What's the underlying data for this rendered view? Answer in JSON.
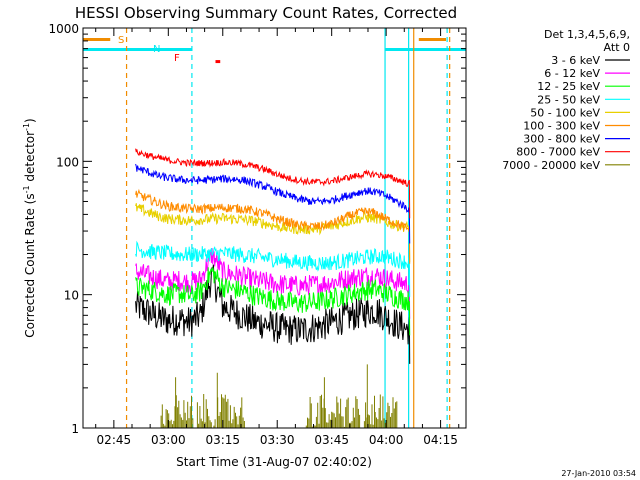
{
  "chart_data": {
    "type": "line",
    "title": "HESSI Observing Summary Count Rates, Corrected",
    "xlabel": "Start Time (31-Aug-07 02:40:02)",
    "ylabel_main": "Corrected Count Rate (s",
    "ylabel_sup1": "-1",
    "ylabel_mid": " detector",
    "ylabel_sup2": "-1",
    "ylabel_end": ")",
    "y_log": true,
    "ylim": [
      1,
      1000
    ],
    "xlim_minutes": [
      -3.5,
      102.0
    ],
    "x_ticks": [
      {
        "label": "02:45",
        "t": 5
      },
      {
        "label": "03:00",
        "t": 20
      },
      {
        "label": "03:15",
        "t": 35
      },
      {
        "label": "03:30",
        "t": 50
      },
      {
        "label": "03:45",
        "t": 65
      },
      {
        "label": "04:00",
        "t": 80
      },
      {
        "label": "04:15",
        "t": 95
      }
    ],
    "y_ticks": [
      {
        "label": "1",
        "v": 1
      },
      {
        "label": "10",
        "v": 10
      },
      {
        "label": "100",
        "v": 100
      },
      {
        "label": "1000",
        "v": 1000
      }
    ],
    "legend_header": "Det 1,3,4,5,6,9,",
    "legend_att": "Att 0",
    "timestamp": "27-Jan-2010 03:54",
    "flag_labels": {
      "saa": "S",
      "night": "N",
      "flare": "F"
    },
    "flag_colors": {
      "saa": "#f08c00",
      "night": "#00e8f0",
      "flare": "#ff0000"
    },
    "vlines": [
      {
        "t": 8.5,
        "color": "#f08c00",
        "dashed": true
      },
      {
        "t": 26.5,
        "color": "#00e8f0",
        "dashed": true
      },
      {
        "t": 79.7,
        "color": "#00e8f0",
        "dashed": false
      },
      {
        "t": 86.2,
        "color": "#00e8f0",
        "dashed": false
      },
      {
        "t": 87.6,
        "color": "#f08c00",
        "dashed": false
      },
      {
        "t": 96.8,
        "color": "#00e8f0",
        "dashed": true
      },
      {
        "t": 97.5,
        "color": "#f08c00",
        "dashed": true
      }
    ],
    "flag_bars": [
      {
        "flag": "saa",
        "t0": -3.5,
        "t1": 4.0,
        "v": 820
      },
      {
        "flag": "night",
        "t0": -3.5,
        "t1": 26.5,
        "v": 690
      },
      {
        "flag": "night",
        "t0": 79.7,
        "t1": 102.0,
        "v": 690
      },
      {
        "flag": "saa",
        "t0": 89.0,
        "t1": 96.5,
        "v": 820
      },
      {
        "flag": "flare",
        "t0": 33.0,
        "t1": 34.3,
        "v": 560
      }
    ],
    "series": [
      {
        "name": "3 - 6 keV",
        "color": "#000000",
        "x": [
          11,
          14,
          17,
          20,
          23,
          26,
          29,
          32,
          35,
          38,
          41,
          44,
          47,
          50,
          53,
          56,
          59,
          62,
          65,
          68,
          71,
          74,
          77,
          80,
          83,
          86
        ],
        "y": [
          8.2,
          7.5,
          6.8,
          6.4,
          6.5,
          6.2,
          7.0,
          13.5,
          8.2,
          7.5,
          6.8,
          6.2,
          6.0,
          5.6,
          5.5,
          5.4,
          5.6,
          5.8,
          6.2,
          6.6,
          7.0,
          7.4,
          7.7,
          6.8,
          6.0,
          5.5
        ],
        "noise": 0.12
      },
      {
        "name": "6 - 12 keV",
        "color": "#ff00ff",
        "x": [
          11,
          14,
          17,
          20,
          23,
          26,
          29,
          32,
          35,
          38,
          41,
          44,
          47,
          50,
          53,
          56,
          59,
          62,
          65,
          68,
          71,
          74,
          77,
          80,
          83,
          86
        ],
        "y": [
          15,
          14,
          13.2,
          12.5,
          12.8,
          12.3,
          13,
          20,
          14.8,
          14.2,
          13.5,
          12.8,
          12.4,
          12,
          11.8,
          11.6,
          11.8,
          12,
          12.4,
          12.9,
          13.4,
          13.8,
          14,
          13.2,
          12.5,
          12
        ],
        "noise": 0.08
      },
      {
        "name": "12 - 25 keV",
        "color": "#00ff00",
        "x": [
          11,
          14,
          17,
          20,
          23,
          26,
          29,
          32,
          35,
          38,
          41,
          44,
          47,
          50,
          53,
          56,
          59,
          62,
          65,
          68,
          71,
          74,
          77,
          80,
          83,
          86
        ],
        "y": [
          11.5,
          11,
          10.5,
          10,
          10.2,
          9.8,
          10.5,
          15,
          11.5,
          11,
          10.5,
          9.8,
          9.4,
          9,
          8.8,
          8.6,
          8.7,
          8.9,
          9.3,
          9.8,
          10.3,
          10.8,
          11,
          10.2,
          9.5,
          9
        ],
        "noise": 0.08
      },
      {
        "name": "25 - 50 keV",
        "color": "#00ffff",
        "x": [
          11,
          15,
          19,
          23,
          27,
          31,
          35,
          39,
          43,
          47,
          51,
          55,
          59,
          63,
          67,
          71,
          75,
          79,
          83,
          86
        ],
        "y": [
          22,
          21,
          20.5,
          20,
          20,
          20.2,
          20.5,
          20,
          19.5,
          18.8,
          18.2,
          17.6,
          17.3,
          17.2,
          17.6,
          18.4,
          19.2,
          19.5,
          18.2,
          17.5
        ],
        "noise": 0.06
      },
      {
        "name": "50 - 100 keV",
        "color": "#e8d000",
        "x": [
          11,
          14,
          17,
          20,
          23,
          26,
          29,
          32,
          35,
          38,
          41,
          44,
          47,
          50,
          53,
          56,
          59,
          62,
          65,
          68,
          71,
          74,
          77,
          80,
          83,
          86
        ],
        "y": [
          45,
          42,
          39,
          37,
          36.5,
          36,
          36.5,
          37,
          37.5,
          37,
          36.5,
          35.5,
          34,
          32.5,
          31.5,
          31,
          31,
          31.5,
          32.5,
          34.5,
          36.5,
          38,
          37.5,
          35,
          33,
          32
        ],
        "noise": 0.04
      },
      {
        "name": "100 - 300 keV",
        "color": "#ff8c00",
        "x": [
          11,
          14,
          17,
          20,
          23,
          26,
          29,
          32,
          35,
          38,
          41,
          44,
          47,
          50,
          53,
          56,
          59,
          62,
          65,
          68,
          71,
          74,
          77,
          80,
          83,
          86
        ],
        "y": [
          57,
          53,
          49,
          46,
          45,
          44,
          44,
          44.5,
          45,
          44.5,
          44,
          42,
          40,
          37,
          35,
          33,
          32.5,
          32.5,
          34,
          37,
          40,
          42,
          41,
          37,
          34,
          31
        ],
        "noise": 0.035
      },
      {
        "name": "300 - 800 keV",
        "color": "#0000ff",
        "x": [
          11,
          14,
          17,
          20,
          23,
          26,
          29,
          32,
          35,
          38,
          41,
          44,
          47,
          50,
          53,
          56,
          59,
          62,
          65,
          68,
          71,
          74,
          77,
          80,
          83,
          86
        ],
        "y": [
          90,
          84,
          78,
          75,
          73,
          72,
          72,
          73,
          74,
          73.5,
          72,
          68,
          64,
          59,
          55,
          52,
          50,
          50,
          51,
          54,
          57,
          60,
          59,
          55,
          50,
          44
        ],
        "noise": 0.03
      },
      {
        "name": "800 - 7000 keV",
        "color": "#ff0000",
        "x": [
          11,
          14,
          17,
          20,
          23,
          26,
          29,
          32,
          35,
          38,
          41,
          44,
          47,
          50,
          53,
          56,
          59,
          62,
          65,
          68,
          71,
          74,
          77,
          80,
          83,
          86
        ],
        "y": [
          118,
          112,
          106,
          102,
          99,
          97,
          97,
          97.5,
          98,
          97.5,
          95,
          91,
          86,
          80,
          75,
          72,
          70,
          70,
          71,
          74,
          77,
          80,
          80,
          77,
          73,
          68
        ],
        "noise": 0.025
      },
      {
        "name": "7000 - 20000 keV",
        "color": "#808000",
        "bursts": [
          [
            18,
            27
          ],
          [
            28,
            41
          ],
          [
            58,
            73
          ],
          [
            74,
            77
          ],
          [
            77,
            83
          ]
        ],
        "peaks": [
          {
            "t": 74.8,
            "v": 3.0
          },
          {
            "t": 33.5,
            "v": 2.6
          },
          {
            "t": 22.0,
            "v": 2.4
          },
          {
            "t": 63.0,
            "v": 2.4
          }
        ],
        "typical_max": 1.8
      }
    ]
  }
}
